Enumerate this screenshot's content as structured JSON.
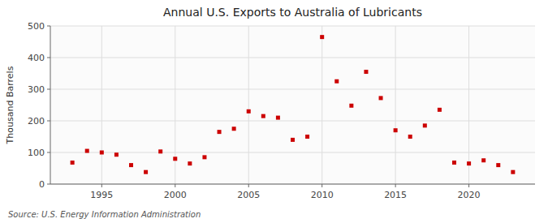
{
  "chart_data": {
    "type": "scatter",
    "title": "Annual U.S. Exports to Australia of Lubricants",
    "ylabel": "Thousand Barrels",
    "source": "Source: U.S. Energy Information Administration",
    "x": [
      1993,
      1994,
      1995,
      1996,
      1997,
      1998,
      1999,
      2000,
      2001,
      2002,
      2003,
      2004,
      2005,
      2006,
      2007,
      2008,
      2009,
      2010,
      2011,
      2012,
      2013,
      2014,
      2015,
      2016,
      2017,
      2018,
      2019,
      2020,
      2021,
      2022,
      2023
    ],
    "values": [
      68,
      105,
      100,
      93,
      60,
      38,
      103,
      80,
      65,
      85,
      165,
      175,
      230,
      215,
      210,
      140,
      150,
      465,
      325,
      248,
      355,
      272,
      170,
      150,
      185,
      235,
      68,
      65,
      75,
      60,
      38
    ],
    "color": "#cc0000",
    "marker": "square",
    "xlim": [
      1991.5,
      2024.5
    ],
    "ylim": [
      0,
      500
    ],
    "xticks": [
      1995,
      2000,
      2005,
      2010,
      2015,
      2020
    ],
    "yticks": [
      0,
      100,
      200,
      300,
      400,
      500
    ],
    "grid": true
  }
}
